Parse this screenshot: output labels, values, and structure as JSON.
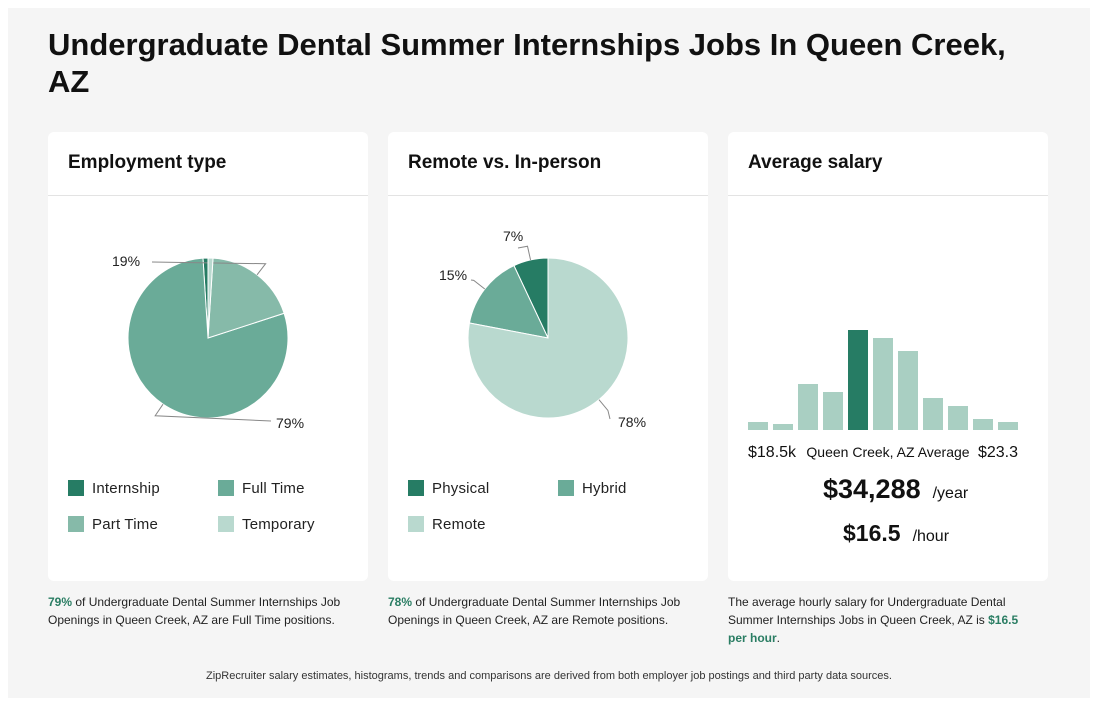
{
  "page": {
    "title": "Undergraduate Dental Summer Internships Jobs In Queen Creek, AZ",
    "bottom_note": "ZipRecruiter salary estimates, histograms, trends and comparisons are derived from both employer job postings and third party data sources."
  },
  "colors": {
    "dark_green": "#267c64",
    "mid_green": "#6aab98",
    "part_green": "#86baa9",
    "light_green": "#b9d9cf",
    "highlight_text": "#2a7d63"
  },
  "chart_data": [
    {
      "type": "pie",
      "title": "Employment type",
      "categories": [
        "Internship",
        "Full Time",
        "Part Time",
        "Temporary"
      ],
      "values": [
        1,
        79,
        19,
        1
      ],
      "colors": [
        "#267c64",
        "#6aab98",
        "#86baa9",
        "#b9d9cf"
      ],
      "data_labels": {
        "Full Time": "79%",
        "Part Time": "19%"
      },
      "legend_position": "bottom"
    },
    {
      "type": "pie",
      "title": "Remote vs. In-person",
      "categories": [
        "Physical",
        "Hybrid",
        "Remote"
      ],
      "values": [
        7,
        15,
        78
      ],
      "colors": [
        "#267c64",
        "#6aab98",
        "#b9d9cf"
      ],
      "data_labels": {
        "Physical": "7%",
        "Hybrid": "15%",
        "Remote": "78%"
      },
      "legend_position": "bottom"
    },
    {
      "type": "bar",
      "title": "Average salary",
      "values": [
        8,
        6,
        46,
        38,
        100,
        92,
        79,
        32,
        24,
        11,
        8
      ],
      "highlight_index": 4,
      "highlight_color": "#267c64",
      "color": "#a9cfc2",
      "ylim": [
        0,
        100
      ],
      "x_min_label": "$18.5k",
      "x_max_label": "$23.3",
      "x_center_label": "Queen Creek, AZ Average"
    }
  ],
  "employment": {
    "title": "Employment type",
    "legend": [
      {
        "label": "Internship",
        "color": "#267c64"
      },
      {
        "label": "Full Time",
        "color": "#6aab98"
      },
      {
        "label": "Part Time",
        "color": "#86baa9"
      },
      {
        "label": "Temporary",
        "color": "#b9d9cf"
      }
    ],
    "footnote": {
      "highlight": "79%",
      "text": " of Undergraduate Dental Summer Internships Job Openings in Queen Creek, AZ are Full Time positions."
    }
  },
  "remote": {
    "title": "Remote vs. In-person",
    "legend": [
      {
        "label": "Physical",
        "color": "#267c64"
      },
      {
        "label": "Hybrid",
        "color": "#6aab98"
      },
      {
        "label": "Remote",
        "color": "#b9d9cf"
      }
    ],
    "footnote": {
      "highlight": "78%",
      "text": " of Undergraduate Dental Summer Internships Job Openings in Queen Creek, AZ are Remote positions."
    }
  },
  "salary": {
    "title": "Average salary",
    "min_label": "$18.5k",
    "center_label": "Queen Creek, AZ Average",
    "max_label": "$23.3",
    "yearly_value": "$34,288",
    "yearly_unit": "/year",
    "hourly_value": "$16.5",
    "hourly_unit": "/hour",
    "footnote": {
      "text": "The average hourly salary for Undergraduate Dental Summer Internships Jobs in Queen Creek, AZ is ",
      "highlight": "$16.5 per hour",
      "end": "."
    }
  }
}
